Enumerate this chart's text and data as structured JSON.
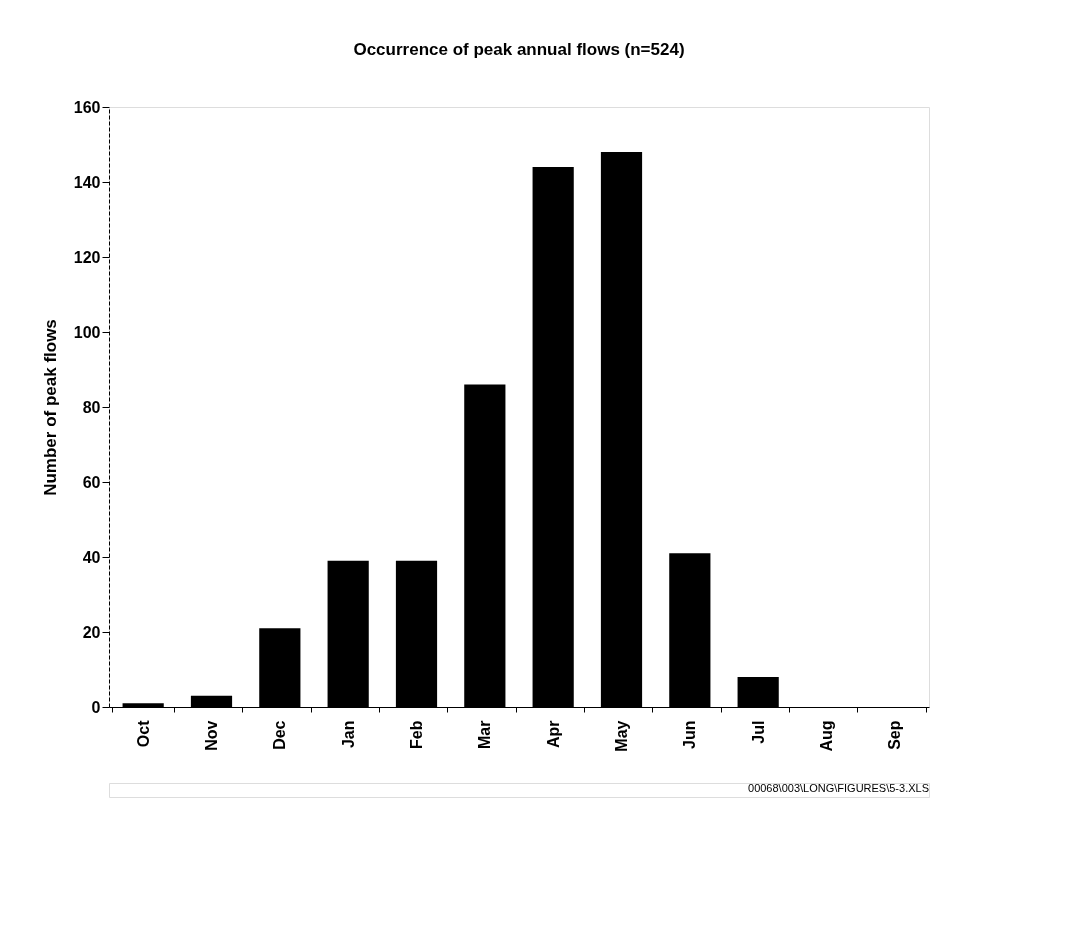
{
  "chart_data": {
    "type": "bar",
    "title": "Occurrence of peak annual flows (n=524)",
    "ylabel": "Number of peak flows",
    "categories": [
      "Oct",
      "Nov",
      "Dec",
      "Jan",
      "Feb",
      "Mar",
      "Apr",
      "May",
      "Jun",
      "Jul",
      "Aug",
      "Sep"
    ],
    "values": [
      1,
      3,
      21,
      39,
      39,
      86,
      144,
      148,
      41,
      8,
      0,
      0
    ],
    "color": "#000000",
    "ylim": [
      0,
      160
    ],
    "yticks": [
      0,
      20,
      40,
      60,
      80,
      100,
      120,
      140,
      160
    ],
    "grid": false,
    "annotations": [
      "00068\\003\\LONG\\FIGURES\\5-3.XLS"
    ]
  }
}
